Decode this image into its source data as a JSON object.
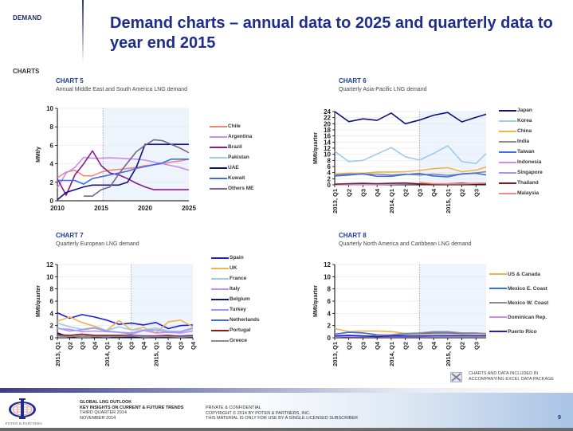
{
  "header": {
    "section": "DEMAND",
    "title": "Demand charts – annual data to 2025 and quarterly data to year end 2015",
    "subsection": "CHARTS"
  },
  "chart_data": [
    {
      "id": "chart5",
      "type": "line",
      "number": "CHART 5",
      "title": "Annual Middle East and South America LNG demand",
      "xlabel": "",
      "ylabel": "MMt/y",
      "x": [
        2010,
        2011,
        2012,
        2013,
        2014,
        2015,
        2016,
        2017,
        2018,
        2019,
        2020,
        2021,
        2022,
        2023,
        2024,
        2025
      ],
      "xticks": [
        "2010",
        "2015",
        "2020",
        "2025"
      ],
      "xtick_values": [
        2010,
        2015,
        2020,
        2025
      ],
      "ylim": [
        0,
        10
      ],
      "yticks": [
        "0",
        "2",
        "4",
        "6",
        "8",
        "10"
      ],
      "forecast_start": 2015.2,
      "grid": true,
      "legend_position": "right",
      "series": [
        {
          "name": "Chile",
          "color": "#f4847a",
          "values": [
            2.5,
            3.1,
            3.3,
            2.7,
            2.7,
            3.1,
            3.3,
            3.4,
            3.5,
            3.6,
            3.8,
            3.9,
            4.0,
            4.2,
            4.3,
            4.5
          ]
        },
        {
          "name": "Argentina",
          "color": "#c98cf0",
          "values": [
            1.4,
            3.0,
            3.6,
            4.7,
            4.6,
            4.6,
            4.65,
            4.6,
            4.55,
            4.5,
            4.4,
            4.2,
            4.0,
            3.8,
            3.6,
            3.3
          ]
        },
        {
          "name": "Brazil",
          "color": "#8b1a8b",
          "values": [
            2.4,
            0.6,
            2.8,
            4.0,
            5.4,
            3.8,
            3.0,
            2.8,
            2.4,
            1.9,
            1.5,
            1.2,
            1.2,
            1.2,
            1.2,
            1.2
          ]
        },
        {
          "name": "Pakistan",
          "color": "#9ccaf2",
          "values": [
            null,
            null,
            null,
            null,
            null,
            null,
            null,
            null,
            null,
            null,
            null,
            null,
            null,
            null,
            null,
            null
          ]
        },
        {
          "name": "UAE",
          "color": "#10137a",
          "values": [
            0.1,
            0.9,
            1.2,
            1.5,
            1.7,
            1.7,
            1.7,
            1.7,
            2.0,
            3.6,
            6.1,
            6.1,
            6.1,
            6.1,
            6.1,
            6.1
          ]
        },
        {
          "name": "Kuwait",
          "color": "#3a6cf0",
          "values": [
            2.2,
            2.2,
            2.2,
            1.8,
            2.4,
            2.6,
            2.8,
            3.0,
            3.2,
            3.5,
            3.7,
            3.9,
            4.1,
            4.5,
            4.5,
            4.5
          ]
        },
        {
          "name": "Others ME",
          "color": "#7b6491",
          "values": [
            null,
            null,
            null,
            0.5,
            0.5,
            1.2,
            1.5,
            2.9,
            4.1,
            5.3,
            6.0,
            6.6,
            6.5,
            6.1,
            5.7,
            5.2
          ]
        }
      ]
    },
    {
      "id": "chart6",
      "type": "line",
      "number": "CHART 6",
      "title": "Quarterly Asia-Pacific LNG demand",
      "xlabel": "",
      "ylabel": "MMt/quarter",
      "x": [
        "2013, Q1",
        "Q2",
        "Q3",
        "Q4",
        "2014, Q1",
        "Q2",
        "Q3",
        "Q4",
        "2015, Q1",
        "Q2",
        "Q3",
        "Q4"
      ],
      "ylim": [
        0,
        24
      ],
      "yticks": [
        "0",
        "2",
        "4",
        "6",
        "8",
        "10",
        "12",
        "14",
        "16",
        "18",
        "20",
        "22",
        "24"
      ],
      "forecast_start_index": 6,
      "grid": true,
      "legend_position": "right",
      "series": [
        {
          "name": "Japan",
          "color": "#10137a",
          "values": [
            24.0,
            20.7,
            21.6,
            21.1,
            23.5,
            20.0,
            21.2,
            22.8,
            23.7,
            20.6,
            22.1,
            23.5
          ]
        },
        {
          "name": "Korea",
          "color": "#9ccaf2",
          "values": [
            11.0,
            7.6,
            8.0,
            10.1,
            12.2,
            9.2,
            8.1,
            10.3,
            12.8,
            7.6,
            7.0,
            11.5
          ]
        },
        {
          "name": "China",
          "color": "#f4b24a",
          "values": [
            3.5,
            3.8,
            3.8,
            4.2,
            4.2,
            4.3,
            4.7,
            5.3,
            5.6,
            4.3,
            4.8,
            6.2
          ]
        },
        {
          "name": "India",
          "color": "#8c8c8c",
          "values": [
            3.3,
            3.5,
            3.5,
            3.5,
            3.2,
            3.5,
            3.2,
            3.5,
            3.1,
            3.5,
            3.9,
            4.5
          ]
        },
        {
          "name": "Taiwan",
          "color": "#3a6cf0",
          "values": [
            2.9,
            3.2,
            3.6,
            2.8,
            2.8,
            3.4,
            3.7,
            2.9,
            2.6,
            3.6,
            3.8,
            3.0
          ]
        },
        {
          "name": "Indonesia",
          "color": "#c98cf0",
          "values": [
            0.1,
            0.1,
            0.1,
            0.1,
            0.2,
            0.3,
            0.4,
            0.4,
            0.4,
            0.5,
            0.5,
            0.6
          ]
        },
        {
          "name": "Singapore",
          "color": "#9a9af2",
          "values": [
            0.2,
            0.2,
            0.3,
            0.3,
            0.3,
            0.3,
            0.3,
            0.3,
            0.3,
            0.4,
            0.4,
            0.4
          ]
        },
        {
          "name": "Thailand",
          "color": "#8b1a1a",
          "values": [
            0.2,
            0.4,
            0.5,
            0.4,
            0.5,
            0.6,
            0.3,
            0.2,
            0.3,
            0.5,
            0.3,
            0.4
          ]
        },
        {
          "name": "Malaysia",
          "color": "#f48a8a",
          "values": [
            null,
            null,
            null,
            null,
            null,
            null,
            0.8,
            0.4,
            0.3,
            0.3,
            0.5,
            0.6
          ]
        }
      ]
    },
    {
      "id": "chart7",
      "type": "line",
      "number": "CHART 7",
      "title": "Quarterly European LNG demand",
      "xlabel": "",
      "ylabel": "MMt/quarter",
      "x": [
        "2013, Q1",
        "Q2",
        "Q3",
        "Q4",
        "2014, Q1",
        "Q2",
        "Q3",
        "Q4",
        "2015, Q1",
        "Q2",
        "Q3",
        "Q4"
      ],
      "ylim": [
        0,
        12
      ],
      "yticks": [
        "0",
        "2",
        "4",
        "6",
        "8",
        "10",
        "12"
      ],
      "forecast_start_index": 6,
      "grid": true,
      "legend_position": "right",
      "series": [
        {
          "name": "Spain",
          "color": "#1a1ae0",
          "values": [
            4.1,
            3.2,
            3.8,
            3.4,
            2.9,
            2.2,
            2.4,
            2.1,
            2.5,
            1.5,
            2.0,
            2.1
          ]
        },
        {
          "name": "UK",
          "color": "#f4b24a",
          "values": [
            2.7,
            3.4,
            2.5,
            1.9,
            1.2,
            2.8,
            1.3,
            1.7,
            0.8,
            2.6,
            2.9,
            1.8
          ]
        },
        {
          "name": "France",
          "color": "#9ccaf2",
          "values": [
            2.4,
            1.8,
            1.4,
            1.7,
            1.2,
            1.8,
            1.3,
            1.3,
            1.6,
            1.1,
            1.0,
            1.7
          ]
        },
        {
          "name": "Italy",
          "color": "#c98cf0",
          "values": [
            1.5,
            1.4,
            1.0,
            1.1,
            1.0,
            0.9,
            0.8,
            1.2,
            0.8,
            0.9,
            0.8,
            1.1
          ]
        },
        {
          "name": "Belgium",
          "color": "#10137a",
          "values": [
            0.8,
            0.1,
            0.3,
            0.2,
            0.2,
            0.1,
            0.1,
            0.1,
            0.1,
            0.1,
            0.1,
            0.2
          ]
        },
        {
          "name": "Turkey",
          "color": "#9a9af2",
          "values": [
            1.6,
            1.1,
            1.3,
            1.6,
            1.1,
            0.9,
            0.6,
            1.2,
            1.3,
            0.9,
            1.0,
            1.5
          ]
        },
        {
          "name": "Netherlands",
          "color": "#3a6cf0",
          "values": [
            0.3,
            0.2,
            0.3,
            0.2,
            0.1,
            0.3,
            0.4,
            0.1,
            0.2,
            0.3,
            0.3,
            0.4
          ]
        },
        {
          "name": "Portugal",
          "color": "#8b1a1a",
          "values": [
            0.5,
            0.4,
            0.6,
            0.4,
            0.4,
            0.4,
            0.4,
            0.3,
            0.3,
            0.4,
            0.2,
            0.3
          ]
        },
        {
          "name": "Greece",
          "color": "#8c8c8c",
          "values": [
            0.3,
            0.2,
            0.3,
            0.2,
            0.2,
            0.2,
            0.3,
            0.2,
            0.2,
            0.2,
            0.1,
            0.2
          ]
        }
      ]
    },
    {
      "id": "chart8",
      "type": "line",
      "number": "CHART 8",
      "title": "Quarterly North America and Caribbean LNG demand",
      "xlabel": "",
      "ylabel": "MMt/quarter",
      "x": [
        "2013, Q1",
        "Q2",
        "Q3",
        "Q4",
        "2014, Q1",
        "Q2",
        "Q3",
        "Q4",
        "2015, Q1",
        "Q2",
        "Q3",
        "Q4"
      ],
      "ylim": [
        0,
        12
      ],
      "yticks": [
        "0",
        "2",
        "4",
        "6",
        "8",
        "10",
        "12"
      ],
      "forecast_start_index": 6,
      "grid": true,
      "legend_position": "right",
      "series": [
        {
          "name": "US & Canada",
          "color": "#f4b24a",
          "values": [
            1.5,
            1.0,
            1.1,
            1.1,
            1.0,
            0.7,
            0.6,
            0.6,
            0.5,
            0.5,
            0.4,
            0.5
          ]
        },
        {
          "name": "Mexico E. Coast",
          "color": "#3a6cf0",
          "values": [
            0.6,
            0.9,
            0.8,
            0.5,
            0.4,
            0.6,
            0.7,
            0.8,
            0.8,
            0.7,
            0.7,
            0.7
          ]
        },
        {
          "name": "Mexico W. Coast",
          "color": "#8c8c8c",
          "values": [
            0.1,
            0.2,
            0.2,
            0.4,
            0.5,
            0.7,
            0.8,
            1.0,
            1.0,
            0.8,
            0.8,
            0.6
          ]
        },
        {
          "name": "Dominican Rep.",
          "color": "#c98cf0",
          "values": [
            0.2,
            0.2,
            0.2,
            0.2,
            0.2,
            0.2,
            0.2,
            0.3,
            0.3,
            0.3,
            0.3,
            0.3
          ]
        },
        {
          "name": "Puerto Rico",
          "color": "#1a1ae0",
          "values": [
            0.3,
            0.4,
            0.3,
            0.2,
            0.3,
            0.3,
            0.3,
            0.3,
            0.3,
            0.3,
            0.3,
            0.3
          ]
        }
      ]
    }
  ],
  "excel_note": {
    "icon": "excel-icon",
    "line1": "CHARTS AND DATA INCLUDED IN",
    "line2": "ACCOMPANYING EXCEL DATA PACKAGE"
  },
  "footer": {
    "logo_text": "POTEN & PARTNERS",
    "pub_title": "GLOBAL LNG OUTLOOK",
    "pub_subtitle": "KEY INSIGHTS ON CURRENT & FUTURE TRENDS",
    "quarter": "THIRD QUARTER 2014",
    "date": "NOVEMBER 2014",
    "confidential": "PRIVATE & CONFIDENTIAL",
    "copyright": "COPYRIGHT © 2014 BY POTEN & PARTNERS, INC.",
    "license": "THIS MATERIAL IS ONLY FOR USE BY A SINGLE LICENSED SUBSCRIBER",
    "page_number": "9"
  }
}
